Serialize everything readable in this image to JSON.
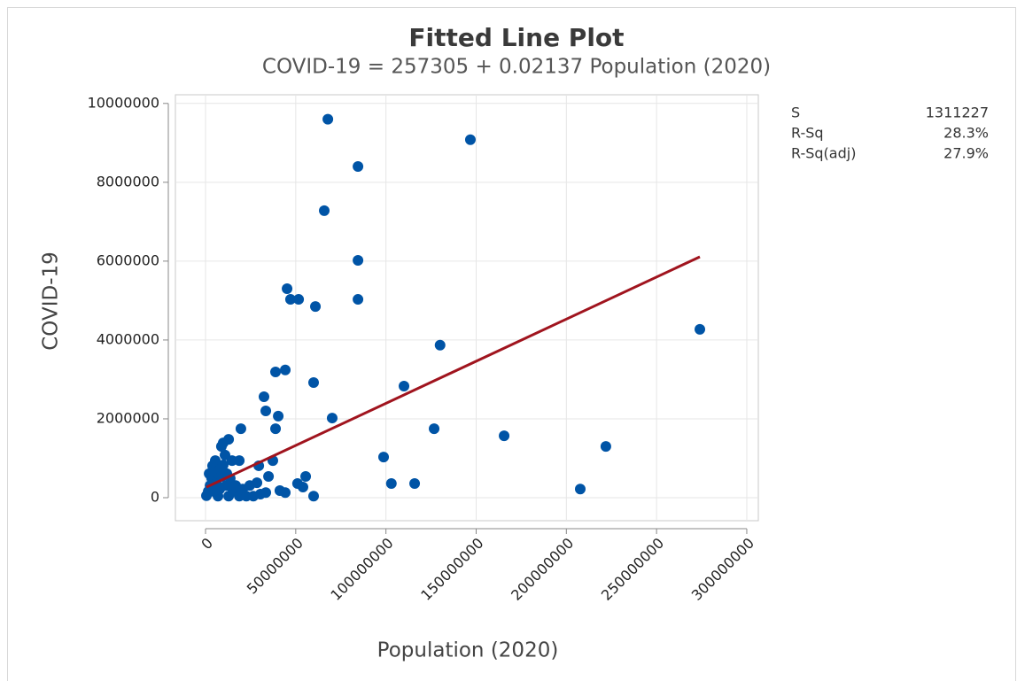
{
  "chart_data": {
    "type": "scatter",
    "title": "Fitted Line Plot",
    "subtitle": "COVID-19 = 257305 + 0.02137 Population (2020)",
    "x_label": "Population (2020)",
    "y_label": "COVID-19",
    "xlim": [
      -16700000,
      306400000
    ],
    "ylim": [
      -584000,
      10220000
    ],
    "xticks": [
      0,
      50000000,
      100000000,
      150000000,
      200000000,
      250000000,
      300000000
    ],
    "yticks": [
      0,
      2000000,
      4000000,
      6000000,
      8000000,
      10000000
    ],
    "grid": true,
    "series": [
      {
        "color": "#0054a6",
        "x": [
          67800000,
          146800000,
          84500000,
          65800000,
          84500000,
          84500000,
          45200000,
          47100000,
          51600000,
          60900000,
          274000000,
          130000000,
          38800000,
          44200000,
          59900000,
          110000000,
          32400000,
          33400000,
          40300000,
          70200000,
          19600000,
          38800000,
          126700000,
          165500000,
          221900000,
          12800000,
          8800000,
          10800000,
          98700000,
          18700000,
          37300000,
          29500000,
          3900000,
          55500000,
          34900000,
          103000000,
          115900000,
          207700000,
          59900000,
          51000000,
          54000000,
          44200000,
          41200000,
          500000,
          1500000,
          2500000,
          3400000,
          4900000,
          5900000,
          6900000,
          7900000,
          8800000,
          9800000,
          11300000,
          12800000,
          13700000,
          15200000,
          16700000,
          18700000,
          20600000,
          22600000,
          24500000,
          26500000,
          28500000,
          30400000,
          33400000,
          5400000,
          7900000,
          11800000,
          14700000,
          2000000,
          4400000,
          9800000
        ],
        "values": [
          9600000,
          9080000,
          8400000,
          7280000,
          6020000,
          5030000,
          5300000,
          5030000,
          5030000,
          4850000,
          4270000,
          3870000,
          3190000,
          3240000,
          2920000,
          2830000,
          2560000,
          2200000,
          2070000,
          2020000,
          1750000,
          1750000,
          1750000,
          1570000,
          1300000,
          1480000,
          1300000,
          1080000,
          1030000,
          940000,
          940000,
          810000,
          810000,
          540000,
          540000,
          360000,
          360000,
          220000,
          40000,
          360000,
          270000,
          130000,
          180000,
          50000,
          160000,
          310000,
          490000,
          670000,
          380000,
          40000,
          220000,
          540000,
          830000,
          310000,
          40000,
          490000,
          160000,
          310000,
          40000,
          220000,
          40000,
          310000,
          40000,
          380000,
          90000,
          130000,
          940000,
          720000,
          610000,
          940000,
          610000,
          160000,
          1390000
        ]
      }
    ],
    "fit_line": {
      "color": "#a0141e",
      "x": [
        500000,
        274000000
      ],
      "values": [
        268000,
        6110000
      ]
    },
    "stats": {
      "labels": [
        "S",
        "R-Sq",
        "R-Sq(adj)"
      ],
      "values": [
        1311227,
        28.3,
        27.9
      ],
      "value_labels": [
        "1311227",
        "28.3%",
        "27.9%"
      ]
    }
  }
}
